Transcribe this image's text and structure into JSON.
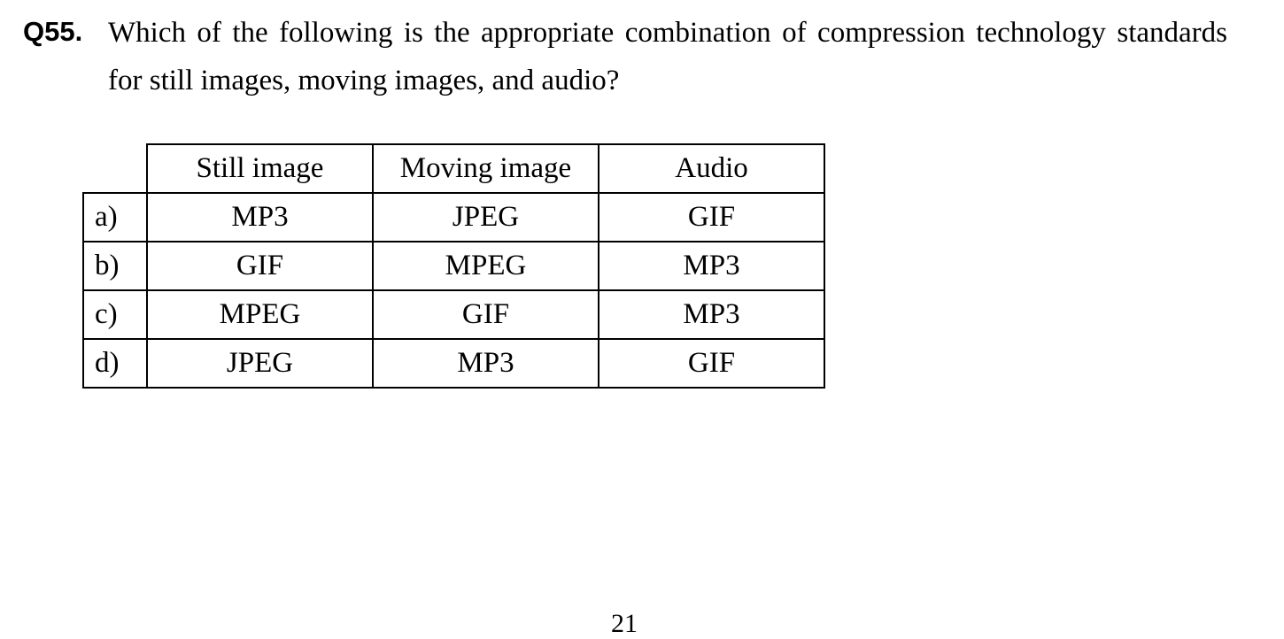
{
  "question": {
    "number": "Q55.",
    "text": "Which of the following is the appropriate combination of compression technology standards for still images, moving images, and audio?"
  },
  "table": {
    "headers": [
      "Still image",
      "Moving image",
      "Audio"
    ],
    "rows": [
      {
        "label": "a)",
        "cells": [
          "MP3",
          "JPEG",
          "GIF"
        ]
      },
      {
        "label": "b)",
        "cells": [
          "GIF",
          "MPEG",
          "MP3"
        ]
      },
      {
        "label": "c)",
        "cells": [
          "MPEG",
          "GIF",
          "MP3"
        ]
      },
      {
        "label": "d)",
        "cells": [
          "JPEG",
          "MP3",
          "GIF"
        ]
      }
    ]
  },
  "footer": {
    "page_number": "21"
  }
}
